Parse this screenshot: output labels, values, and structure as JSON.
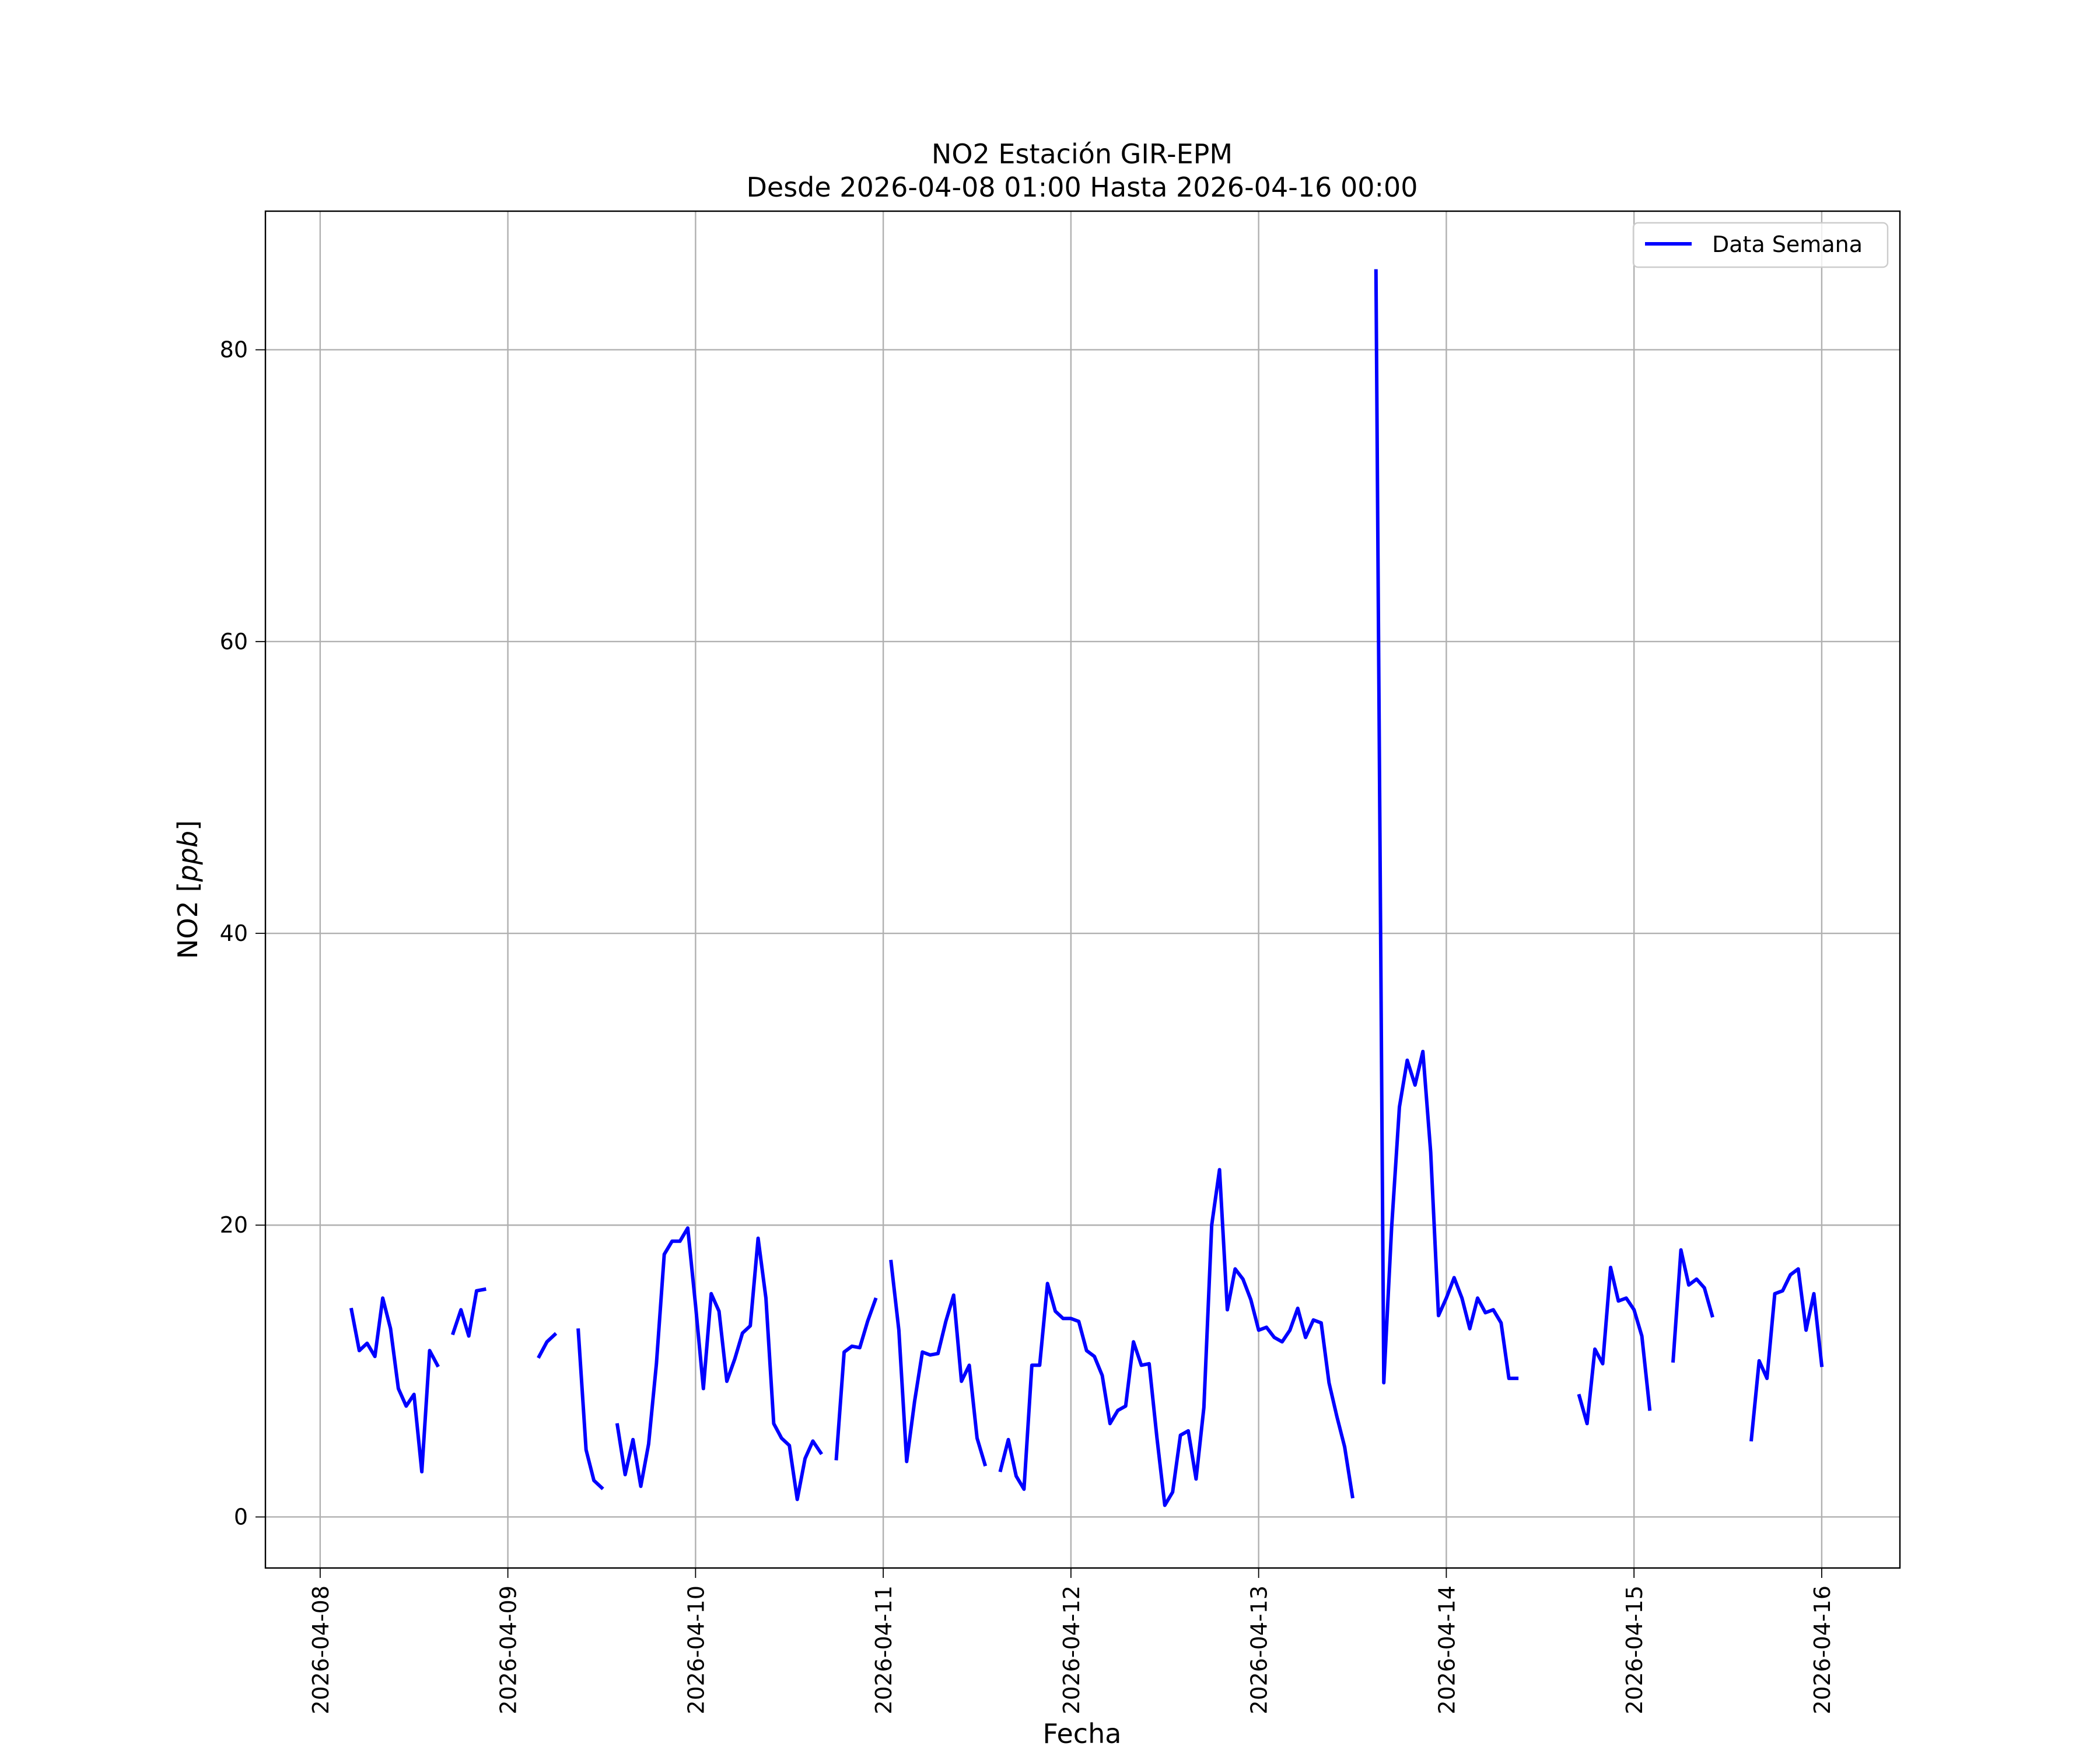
{
  "chart_data": {
    "type": "line",
    "title": "NO2 Estación GIR-EPM",
    "subtitle": "Desde 2026-04-08 01:00 Hasta 2026-04-16 00:00",
    "xlabel": "Fecha",
    "ylabel": "NO2 [ppb]",
    "ylabel_main": "NO2 [",
    "ylabel_unit": "ppb",
    "ylabel_end": "]",
    "xlim": [
      "2026-04-07 17:00",
      "2026-04-16 10:00"
    ],
    "ylim": [
      -3.5,
      89.5
    ],
    "x_ticks": [
      "2026-04-08",
      "2026-04-09",
      "2026-04-10",
      "2026-04-11",
      "2026-04-12",
      "2026-04-13",
      "2026-04-14",
      "2026-04-15",
      "2026-04-16"
    ],
    "y_ticks": [
      "0",
      "20",
      "40",
      "60",
      "80"
    ],
    "grid": true,
    "legend": {
      "position": "top-right",
      "entries": [
        "Data Semana"
      ]
    },
    "series": [
      {
        "name": "Data Semana",
        "color": "#0000ff",
        "segments": [
          [
            [
              "2026-04-08 04:00",
              14.2
            ],
            [
              "2026-04-08 05:00",
              11.4
            ],
            [
              "2026-04-08 06:00",
              11.9
            ],
            [
              "2026-04-08 07:00",
              11.0
            ],
            [
              "2026-04-08 08:00",
              15.0
            ],
            [
              "2026-04-08 09:00",
              12.9
            ],
            [
              "2026-04-08 10:00",
              8.8
            ],
            [
              "2026-04-08 11:00",
              7.6
            ],
            [
              "2026-04-08 12:00",
              8.4
            ],
            [
              "2026-04-08 13:00",
              3.1
            ],
            [
              "2026-04-08 14:00",
              11.4
            ],
            [
              "2026-04-08 15:00",
              10.4
            ]
          ],
          [
            [
              "2026-04-08 17:00",
              12.6
            ],
            [
              "2026-04-08 18:00",
              14.2
            ],
            [
              "2026-04-08 19:00",
              12.4
            ],
            [
              "2026-04-08 20:00",
              15.5
            ],
            [
              "2026-04-08 21:00",
              15.6
            ]
          ],
          [
            [
              "2026-04-09 04:00",
              11.0
            ],
            [
              "2026-04-09 05:00",
              12.0
            ],
            [
              "2026-04-09 06:00",
              12.5
            ]
          ],
          [
            [
              "2026-04-09 09:00",
              12.8
            ],
            [
              "2026-04-09 10:00",
              4.6
            ],
            [
              "2026-04-09 11:00",
              2.5
            ],
            [
              "2026-04-09 12:00",
              2.0
            ]
          ],
          [
            [
              "2026-04-09 14:00",
              6.3
            ],
            [
              "2026-04-09 15:00",
              2.9
            ],
            [
              "2026-04-09 16:00",
              5.3
            ],
            [
              "2026-04-09 17:00",
              2.1
            ],
            [
              "2026-04-09 18:00",
              5.0
            ],
            [
              "2026-04-09 19:00",
              10.5
            ],
            [
              "2026-04-09 20:00",
              18.0
            ],
            [
              "2026-04-09 21:00",
              18.9
            ],
            [
              "2026-04-09 22:00",
              18.9
            ],
            [
              "2026-04-09 23:00",
              19.8
            ],
            [
              "2026-04-10 00:00",
              14.5
            ],
            [
              "2026-04-10 01:00",
              8.8
            ],
            [
              "2026-04-10 02:00",
              15.3
            ],
            [
              "2026-04-10 03:00",
              14.1
            ],
            [
              "2026-04-10 04:00",
              9.3
            ],
            [
              "2026-04-10 05:00",
              10.8
            ],
            [
              "2026-04-10 06:00",
              12.6
            ],
            [
              "2026-04-10 07:00",
              13.1
            ],
            [
              "2026-04-10 08:00",
              19.1
            ],
            [
              "2026-04-10 09:00",
              15.0
            ],
            [
              "2026-04-10 10:00",
              6.4
            ],
            [
              "2026-04-10 11:00",
              5.4
            ],
            [
              "2026-04-10 12:00",
              4.9
            ],
            [
              "2026-04-10 13:00",
              1.2
            ],
            [
              "2026-04-10 14:00",
              4.0
            ],
            [
              "2026-04-10 15:00",
              5.2
            ],
            [
              "2026-04-10 16:00",
              4.4
            ]
          ],
          [
            [
              "2026-04-10 18:00",
              4.0
            ],
            [
              "2026-04-10 19:00",
              11.3
            ],
            [
              "2026-04-10 20:00",
              11.7
            ],
            [
              "2026-04-10 21:00",
              11.6
            ],
            [
              "2026-04-10 22:00",
              13.4
            ],
            [
              "2026-04-10 23:00",
              14.9
            ]
          ],
          [
            [
              "2026-04-11 01:00",
              17.5
            ],
            [
              "2026-04-11 02:00",
              12.8
            ],
            [
              "2026-04-11 03:00",
              3.8
            ],
            [
              "2026-04-11 04:00",
              7.9
            ],
            [
              "2026-04-11 05:00",
              11.3
            ],
            [
              "2026-04-11 06:00",
              11.1
            ],
            [
              "2026-04-11 07:00",
              11.2
            ],
            [
              "2026-04-11 08:00",
              13.4
            ],
            [
              "2026-04-11 09:00",
              15.2
            ],
            [
              "2026-04-11 10:00",
              9.3
            ],
            [
              "2026-04-11 11:00",
              10.4
            ],
            [
              "2026-04-11 12:00",
              5.4
            ],
            [
              "2026-04-11 13:00",
              3.6
            ]
          ],
          [
            [
              "2026-04-11 15:00",
              3.2
            ],
            [
              "2026-04-11 16:00",
              5.3
            ],
            [
              "2026-04-11 17:00",
              2.8
            ],
            [
              "2026-04-11 18:00",
              1.9
            ],
            [
              "2026-04-11 19:00",
              10.4
            ],
            [
              "2026-04-11 20:00",
              10.4
            ],
            [
              "2026-04-11 21:00",
              16.0
            ],
            [
              "2026-04-11 22:00",
              14.1
            ],
            [
              "2026-04-11 23:00",
              13.6
            ],
            [
              "2026-04-12 00:00",
              13.6
            ],
            [
              "2026-04-12 01:00",
              13.4
            ],
            [
              "2026-04-12 02:00",
              11.4
            ],
            [
              "2026-04-12 03:00",
              11.0
            ],
            [
              "2026-04-12 04:00",
              9.7
            ],
            [
              "2026-04-12 05:00",
              6.4
            ],
            [
              "2026-04-12 06:00",
              7.3
            ],
            [
              "2026-04-12 07:00",
              7.6
            ],
            [
              "2026-04-12 08:00",
              12.0
            ],
            [
              "2026-04-12 09:00",
              10.4
            ],
            [
              "2026-04-12 10:00",
              10.5
            ],
            [
              "2026-04-12 11:00",
              5.4
            ],
            [
              "2026-04-12 12:00",
              0.8
            ],
            [
              "2026-04-12 13:00",
              1.7
            ],
            [
              "2026-04-12 14:00",
              5.6
            ],
            [
              "2026-04-12 15:00",
              5.9
            ],
            [
              "2026-04-12 16:00",
              2.6
            ],
            [
              "2026-04-12 17:00",
              7.5
            ],
            [
              "2026-04-12 18:00",
              20.0
            ],
            [
              "2026-04-12 19:00",
              23.8
            ],
            [
              "2026-04-12 20:00",
              14.2
            ],
            [
              "2026-04-12 21:00",
              17.0
            ],
            [
              "2026-04-12 22:00",
              16.3
            ],
            [
              "2026-04-12 23:00",
              14.9
            ],
            [
              "2026-04-13 00:00",
              12.8
            ],
            [
              "2026-04-13 01:00",
              13.0
            ],
            [
              "2026-04-13 02:00",
              12.3
            ],
            [
              "2026-04-13 03:00",
              12.0
            ],
            [
              "2026-04-13 04:00",
              12.8
            ],
            [
              "2026-04-13 05:00",
              14.3
            ],
            [
              "2026-04-13 06:00",
              12.3
            ],
            [
              "2026-04-13 07:00",
              13.5
            ],
            [
              "2026-04-13 08:00",
              13.3
            ],
            [
              "2026-04-13 09:00",
              9.2
            ],
            [
              "2026-04-13 10:00",
              6.9
            ],
            [
              "2026-04-13 11:00",
              4.8
            ],
            [
              "2026-04-13 12:00",
              1.4
            ]
          ],
          [
            [
              "2026-04-13 15:00",
              85.4
            ],
            [
              "2026-04-13 16:00",
              9.2
            ],
            [
              "2026-04-13 17:00",
              19.8
            ],
            [
              "2026-04-13 18:00",
              28.1
            ],
            [
              "2026-04-13 19:00",
              31.3
            ],
            [
              "2026-04-13 20:00",
              29.6
            ],
            [
              "2026-04-13 21:00",
              31.9
            ],
            [
              "2026-04-13 22:00",
              25.0
            ],
            [
              "2026-04-13 23:00",
              13.8
            ],
            [
              "2026-04-14 00:00",
              15.0
            ],
            [
              "2026-04-14 01:00",
              16.4
            ],
            [
              "2026-04-14 02:00",
              15.0
            ],
            [
              "2026-04-14 03:00",
              12.9
            ],
            [
              "2026-04-14 04:00",
              15.0
            ],
            [
              "2026-04-14 05:00",
              14.0
            ],
            [
              "2026-04-14 06:00",
              14.2
            ],
            [
              "2026-04-14 07:00",
              13.3
            ],
            [
              "2026-04-14 08:00",
              9.5
            ],
            [
              "2026-04-14 09:00",
              9.5
            ]
          ],
          [
            [
              "2026-04-14 17:00",
              8.3
            ],
            [
              "2026-04-14 18:00",
              6.4
            ],
            [
              "2026-04-14 19:00",
              11.5
            ],
            [
              "2026-04-14 20:00",
              10.5
            ],
            [
              "2026-04-14 21:00",
              17.1
            ],
            [
              "2026-04-14 22:00",
              14.8
            ],
            [
              "2026-04-14 23:00",
              15.0
            ],
            [
              "2026-04-15 00:00",
              14.2
            ],
            [
              "2026-04-15 01:00",
              12.4
            ],
            [
              "2026-04-15 02:00",
              7.4
            ]
          ],
          [
            [
              "2026-04-15 05:00",
              10.7
            ],
            [
              "2026-04-15 06:00",
              18.3
            ],
            [
              "2026-04-15 07:00",
              15.9
            ],
            [
              "2026-04-15 08:00",
              16.3
            ],
            [
              "2026-04-15 09:00",
              15.7
            ],
            [
              "2026-04-15 10:00",
              13.8
            ]
          ],
          [
            [
              "2026-04-15 15:00",
              5.3
            ],
            [
              "2026-04-15 16:00",
              10.7
            ],
            [
              "2026-04-15 17:00",
              9.5
            ],
            [
              "2026-04-15 18:00",
              15.3
            ],
            [
              "2026-04-15 19:00",
              15.5
            ],
            [
              "2026-04-15 20:00",
              16.6
            ],
            [
              "2026-04-15 21:00",
              17.0
            ],
            [
              "2026-04-15 22:00",
              12.8
            ],
            [
              "2026-04-15 23:00",
              15.3
            ],
            [
              "2026-04-16 00:00",
              10.4
            ]
          ]
        ]
      }
    ]
  }
}
